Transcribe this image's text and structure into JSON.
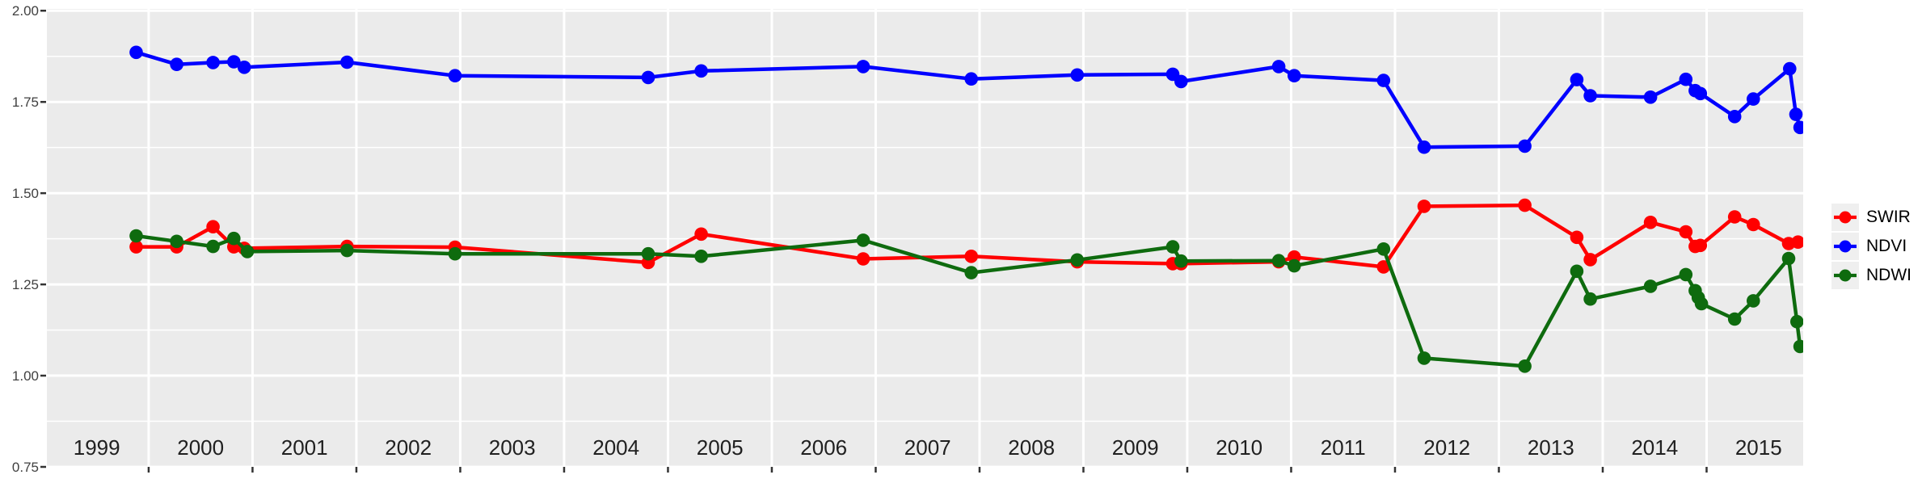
{
  "chart_data": {
    "type": "line",
    "title": "",
    "xlabel": "",
    "ylabel": "",
    "grid": "on",
    "legend_position": "right",
    "panel_bg": "#EBEBEB",
    "grid_color": "#FFFFFF",
    "x_domain": [
      1999.02,
      2015.93
    ],
    "y_domain": [
      0.75,
      2.005
    ],
    "x_axis": {
      "year_start": 1999,
      "years": [
        "1999",
        "2000",
        "2001",
        "2002",
        "2003",
        "2004",
        "2005",
        "2006",
        "2007",
        "2008",
        "2009",
        "2010",
        "2011",
        "2012",
        "2013",
        "2014",
        "2015"
      ],
      "text_color": "#202020"
    },
    "y_axis": {
      "ticks": [
        0.75,
        1.0,
        1.25,
        1.5,
        1.75,
        2.0
      ],
      "labels": [
        "0.75",
        "1.00",
        "1.25",
        "1.50",
        "1.75",
        "2.00"
      ],
      "minor": [
        0.875,
        1.125,
        1.375,
        1.625,
        1.875
      ],
      "text_color": "#404040"
    },
    "series": [
      {
        "name": "SWIR",
        "color": "#FF0000",
        "x": [
          1999.88,
          2000.27,
          2000.62,
          2000.82,
          2000.92,
          2001.91,
          2002.95,
          2004.81,
          2005.32,
          2006.88,
          2007.92,
          2008.94,
          2009.86,
          2009.94,
          2010.88,
          2011.03,
          2011.89,
          2012.28,
          2013.25,
          2013.75,
          2013.88,
          2014.46,
          2014.8,
          2014.89,
          2014.94,
          2015.27,
          2015.45,
          2015.79,
          2015.88
        ],
        "values": [
          1.353,
          1.353,
          1.408,
          1.353,
          1.349,
          1.354,
          1.352,
          1.31,
          1.388,
          1.32,
          1.327,
          1.312,
          1.307,
          1.307,
          1.312,
          1.325,
          1.298,
          1.464,
          1.467,
          1.379,
          1.318,
          1.42,
          1.394,
          1.354,
          1.357,
          1.435,
          1.414,
          1.362,
          1.366
        ]
      },
      {
        "name": "NDVI",
        "color": "#0000FF",
        "x": [
          1999.88,
          2000.27,
          2000.62,
          2000.82,
          2000.92,
          2001.91,
          2002.95,
          2004.81,
          2005.32,
          2006.88,
          2007.92,
          2008.94,
          2009.86,
          2009.94,
          2010.88,
          2011.03,
          2011.89,
          2012.28,
          2013.25,
          2013.75,
          2013.88,
          2014.46,
          2014.8,
          2014.89,
          2014.94,
          2015.27,
          2015.45,
          2015.8,
          2015.86,
          2015.9
        ],
        "values": [
          1.886,
          1.853,
          1.858,
          1.86,
          1.845,
          1.859,
          1.822,
          1.817,
          1.835,
          1.847,
          1.813,
          1.824,
          1.826,
          1.806,
          1.847,
          1.822,
          1.809,
          1.626,
          1.629,
          1.811,
          1.767,
          1.763,
          1.812,
          1.781,
          1.773,
          1.71,
          1.758,
          1.841,
          1.716,
          1.68
        ]
      },
      {
        "name": "NDWI",
        "color": "#0E6B0E",
        "x": [
          1999.88,
          2000.27,
          2000.62,
          2000.82,
          2000.95,
          2001.91,
          2002.95,
          2004.81,
          2005.32,
          2006.88,
          2007.92,
          2008.94,
          2009.86,
          2009.94,
          2010.88,
          2011.03,
          2011.89,
          2012.28,
          2013.25,
          2013.75,
          2013.88,
          2014.46,
          2014.8,
          2014.89,
          2014.92,
          2014.95,
          2015.27,
          2015.45,
          2015.79,
          2015.87,
          2015.9
        ],
        "values": [
          1.383,
          1.368,
          1.354,
          1.376,
          1.34,
          1.343,
          1.334,
          1.334,
          1.327,
          1.371,
          1.282,
          1.317,
          1.353,
          1.314,
          1.315,
          1.301,
          1.347,
          1.048,
          1.026,
          1.286,
          1.21,
          1.245,
          1.277,
          1.233,
          1.214,
          1.197,
          1.155,
          1.205,
          1.321,
          1.148,
          1.08
        ]
      }
    ]
  }
}
